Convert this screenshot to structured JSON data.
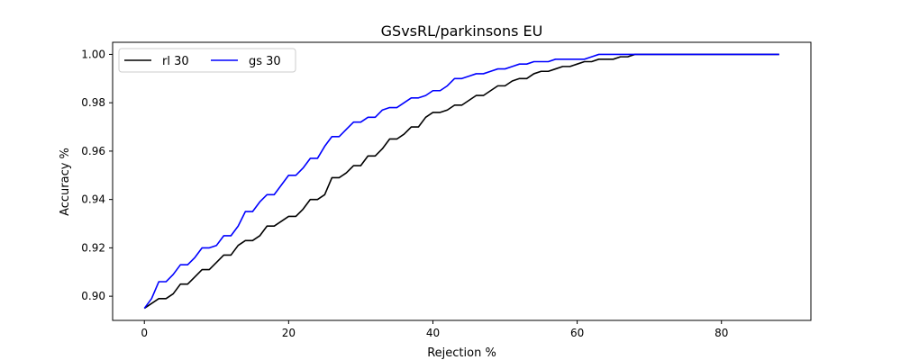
{
  "chart_data": {
    "type": "line",
    "title": "GSvsRL/parkinsons EU",
    "xlabel": "Rejection %",
    "ylabel": "Accuracy %",
    "xlim": [
      -4.4,
      92.4
    ],
    "ylim": [
      0.89,
      1.005
    ],
    "xticks": [
      0,
      20,
      40,
      60,
      80
    ],
    "yticks": [
      0.9,
      0.92,
      0.94,
      0.96,
      0.98,
      1.0
    ],
    "xtick_labels": [
      "0",
      "20",
      "40",
      "60",
      "80"
    ],
    "ytick_labels": [
      "0.90",
      "0.92",
      "0.94",
      "0.96",
      "0.98",
      "1.00"
    ],
    "grid": false,
    "legend_position": "top-left",
    "series": [
      {
        "name": "rl 30",
        "color": "#000000",
        "points": [
          [
            0,
            0.895
          ],
          [
            2,
            0.899
          ],
          [
            3,
            0.899
          ],
          [
            4,
            0.901
          ],
          [
            5,
            0.905
          ],
          [
            6,
            0.905
          ],
          [
            7,
            0.908
          ],
          [
            8,
            0.911
          ],
          [
            9,
            0.911
          ],
          [
            10,
            0.914
          ],
          [
            11,
            0.917
          ],
          [
            12,
            0.917
          ],
          [
            13,
            0.921
          ],
          [
            14,
            0.923
          ],
          [
            15,
            0.923
          ],
          [
            16,
            0.925
          ],
          [
            17,
            0.929
          ],
          [
            18,
            0.929
          ],
          [
            19,
            0.931
          ],
          [
            20,
            0.933
          ],
          [
            21,
            0.933
          ],
          [
            22,
            0.936
          ],
          [
            23,
            0.94
          ],
          [
            24,
            0.94
          ],
          [
            25,
            0.942
          ],
          [
            26,
            0.949
          ],
          [
            27,
            0.949
          ],
          [
            28,
            0.951
          ],
          [
            29,
            0.954
          ],
          [
            30,
            0.954
          ],
          [
            31,
            0.958
          ],
          [
            32,
            0.958
          ],
          [
            33,
            0.961
          ],
          [
            34,
            0.965
          ],
          [
            35,
            0.965
          ],
          [
            36,
            0.967
          ],
          [
            37,
            0.97
          ],
          [
            38,
            0.97
          ],
          [
            39,
            0.974
          ],
          [
            40,
            0.976
          ],
          [
            41,
            0.976
          ],
          [
            42,
            0.977
          ],
          [
            43,
            0.979
          ],
          [
            44,
            0.979
          ],
          [
            45,
            0.981
          ],
          [
            46,
            0.983
          ],
          [
            47,
            0.983
          ],
          [
            48,
            0.985
          ],
          [
            49,
            0.987
          ],
          [
            50,
            0.987
          ],
          [
            51,
            0.989
          ],
          [
            52,
            0.99
          ],
          [
            53,
            0.99
          ],
          [
            54,
            0.992
          ],
          [
            55,
            0.993
          ],
          [
            56,
            0.993
          ],
          [
            57,
            0.994
          ],
          [
            58,
            0.995
          ],
          [
            59,
            0.995
          ],
          [
            60,
            0.996
          ],
          [
            61,
            0.997
          ],
          [
            62,
            0.997
          ],
          [
            63,
            0.998
          ],
          [
            64,
            0.998
          ],
          [
            65,
            0.998
          ],
          [
            66,
            0.999
          ],
          [
            67,
            0.999
          ],
          [
            68,
            1.0
          ],
          [
            70,
            1.0
          ],
          [
            75,
            1.0
          ],
          [
            80,
            1.0
          ],
          [
            85,
            1.0
          ],
          [
            88,
            1.0
          ]
        ]
      },
      {
        "name": "gs 30",
        "color": "#0000ff",
        "points": [
          [
            0,
            0.895
          ],
          [
            1,
            0.899
          ],
          [
            2,
            0.906
          ],
          [
            3,
            0.906
          ],
          [
            4,
            0.909
          ],
          [
            5,
            0.913
          ],
          [
            6,
            0.913
          ],
          [
            7,
            0.916
          ],
          [
            8,
            0.92
          ],
          [
            9,
            0.92
          ],
          [
            10,
            0.921
          ],
          [
            11,
            0.925
          ],
          [
            12,
            0.925
          ],
          [
            13,
            0.929
          ],
          [
            14,
            0.935
          ],
          [
            15,
            0.935
          ],
          [
            16,
            0.939
          ],
          [
            17,
            0.942
          ],
          [
            18,
            0.942
          ],
          [
            19,
            0.946
          ],
          [
            20,
            0.95
          ],
          [
            21,
            0.95
          ],
          [
            22,
            0.953
          ],
          [
            23,
            0.957
          ],
          [
            24,
            0.957
          ],
          [
            25,
            0.962
          ],
          [
            26,
            0.966
          ],
          [
            27,
            0.966
          ],
          [
            28,
            0.969
          ],
          [
            29,
            0.972
          ],
          [
            30,
            0.972
          ],
          [
            31,
            0.974
          ],
          [
            32,
            0.974
          ],
          [
            33,
            0.977
          ],
          [
            34,
            0.978
          ],
          [
            35,
            0.978
          ],
          [
            36,
            0.98
          ],
          [
            37,
            0.982
          ],
          [
            38,
            0.982
          ],
          [
            39,
            0.983
          ],
          [
            40,
            0.985
          ],
          [
            41,
            0.985
          ],
          [
            42,
            0.987
          ],
          [
            43,
            0.99
          ],
          [
            44,
            0.99
          ],
          [
            45,
            0.991
          ],
          [
            46,
            0.992
          ],
          [
            47,
            0.992
          ],
          [
            48,
            0.993
          ],
          [
            49,
            0.994
          ],
          [
            50,
            0.994
          ],
          [
            51,
            0.995
          ],
          [
            52,
            0.996
          ],
          [
            53,
            0.996
          ],
          [
            54,
            0.997
          ],
          [
            55,
            0.997
          ],
          [
            56,
            0.997
          ],
          [
            57,
            0.998
          ],
          [
            58,
            0.998
          ],
          [
            59,
            0.998
          ],
          [
            60,
            0.998
          ],
          [
            61,
            0.998
          ],
          [
            62,
            0.999
          ],
          [
            63,
            1.0
          ],
          [
            64,
            1.0
          ],
          [
            65,
            1.0
          ],
          [
            66,
            1.0
          ],
          [
            67,
            1.0
          ],
          [
            68,
            1.0
          ],
          [
            70,
            1.0
          ],
          [
            75,
            1.0
          ],
          [
            80,
            1.0
          ],
          [
            85,
            1.0
          ],
          [
            88,
            1.0
          ]
        ]
      }
    ]
  }
}
